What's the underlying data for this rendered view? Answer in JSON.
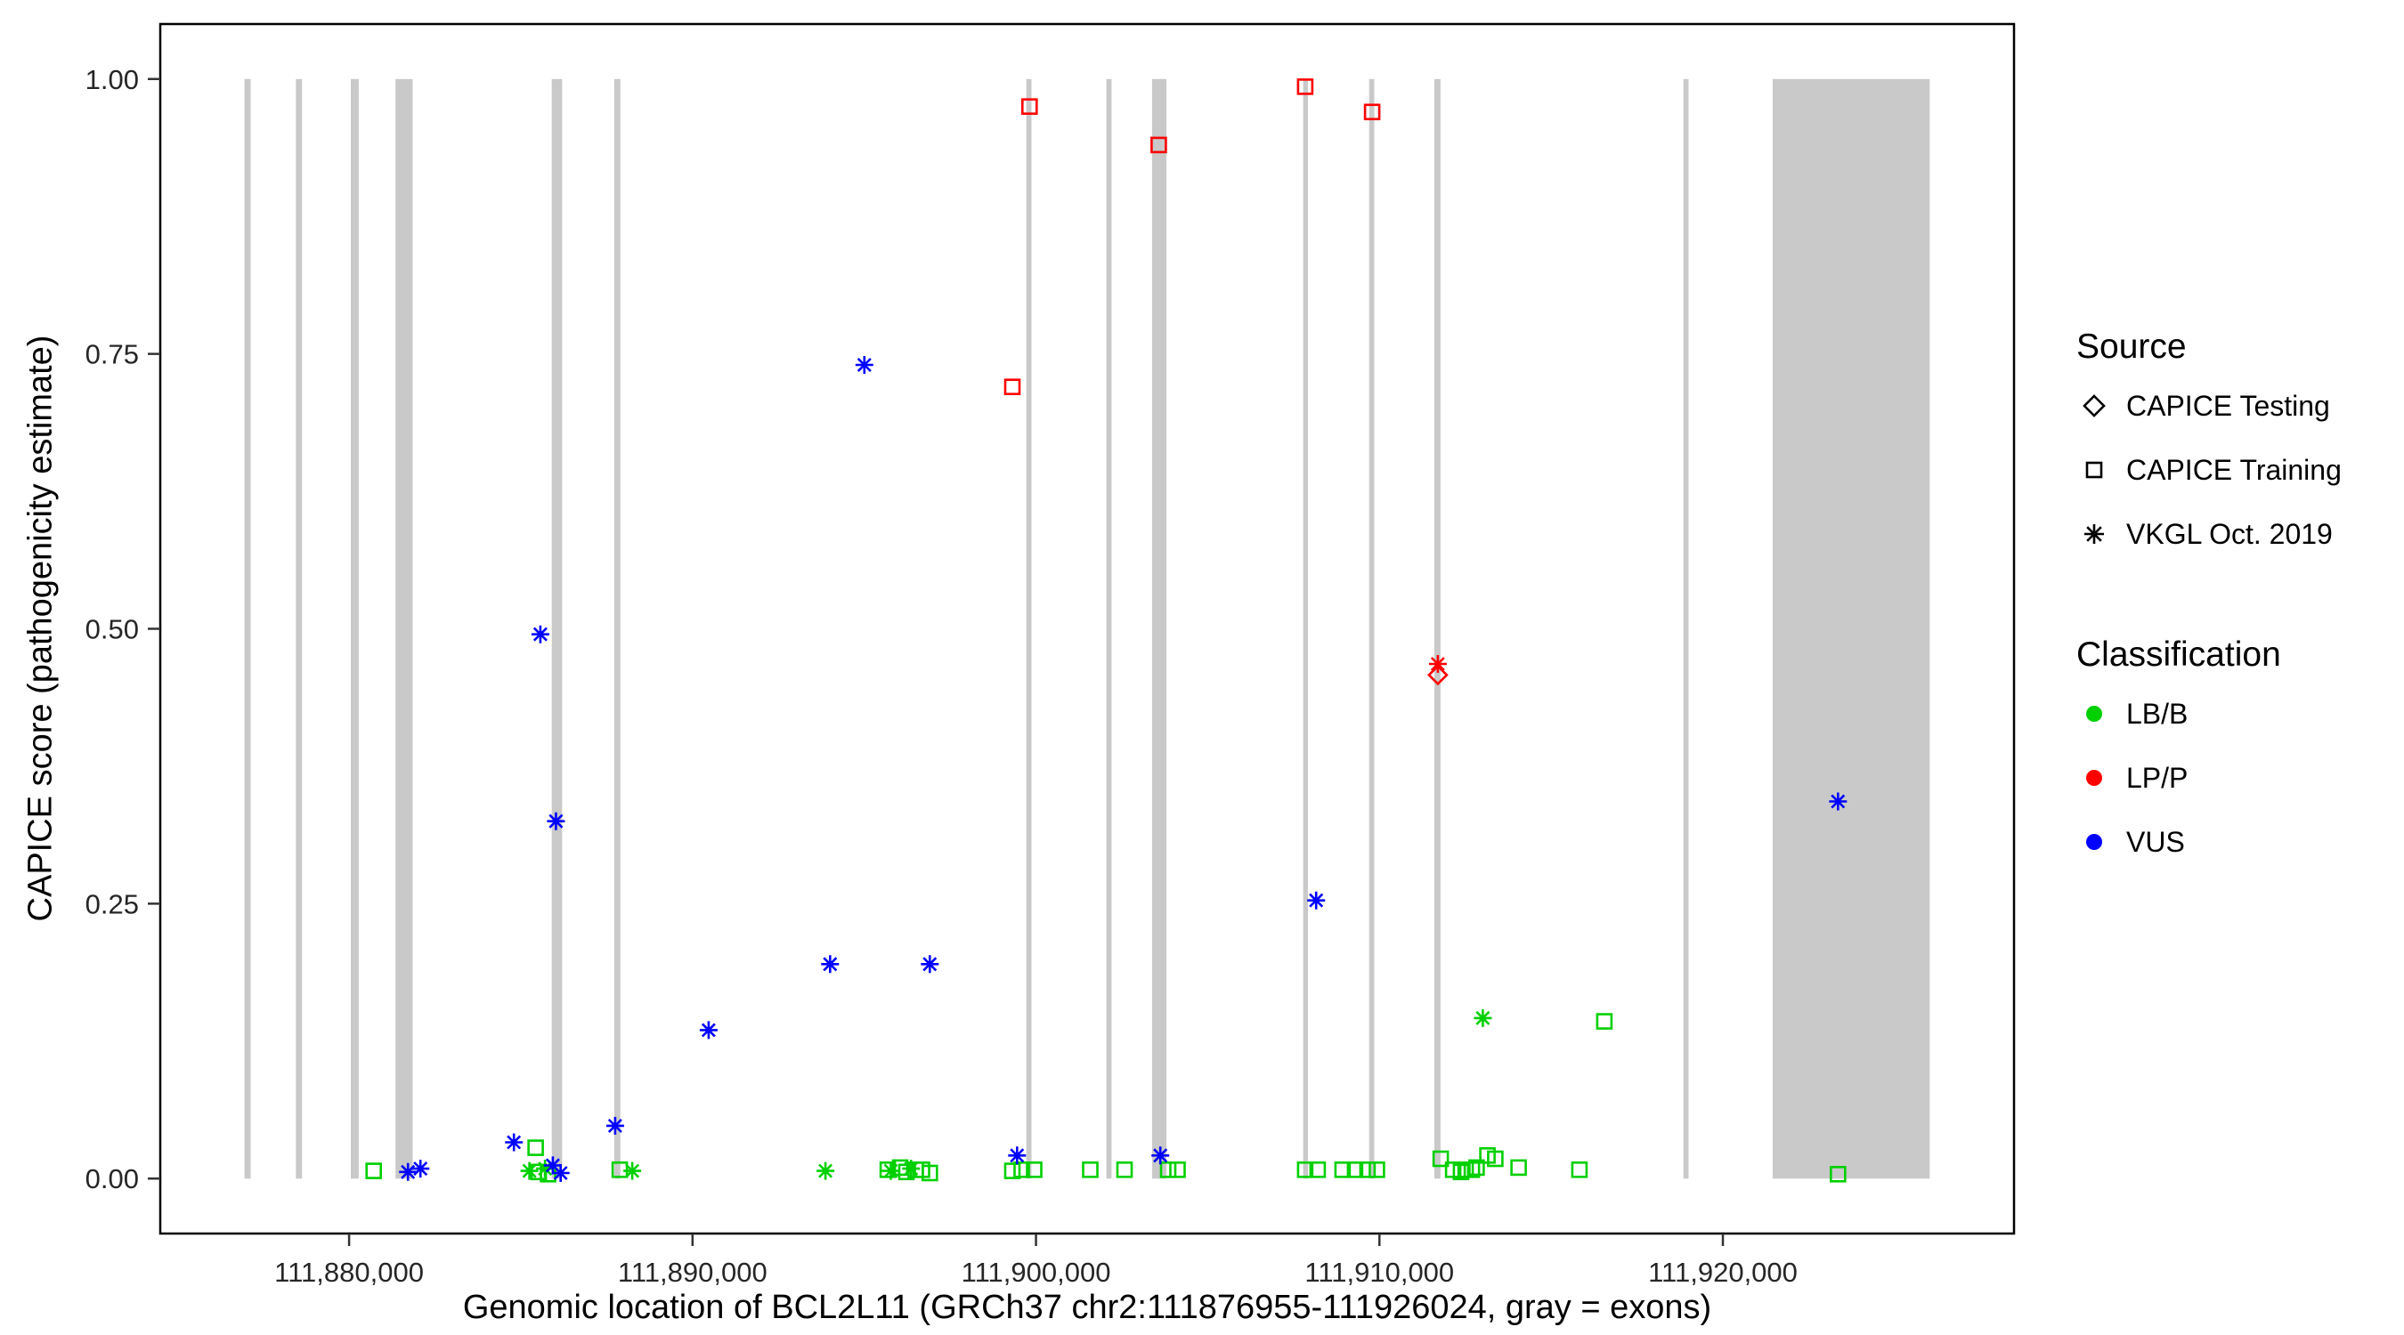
{
  "chart_data": {
    "type": "scatter",
    "title": "",
    "xlabel": "Genomic location of BCL2L11 (GRCh37 chr2:111876955-111926024, gray = exons)",
    "ylabel": "CAPICE score (pathogenicity estimate)",
    "xlim": [
      111874502,
      111928477
    ],
    "ylim": [
      -0.05,
      1.05
    ],
    "grid": false,
    "legend_position": "right",
    "panel_border_color": "#000000",
    "exon_color": "#c9c9c9",
    "x_ticks": [
      {
        "value": 111880000,
        "label": "111,880,000"
      },
      {
        "value": 111890000,
        "label": "111,890,000"
      },
      {
        "value": 111900000,
        "label": "111,900,000"
      },
      {
        "value": 111910000,
        "label": "111,910,000"
      },
      {
        "value": 111920000,
        "label": "111,920,000"
      }
    ],
    "y_ticks": [
      {
        "value": 0.0,
        "label": "0.00"
      },
      {
        "value": 0.25,
        "label": "0.25"
      },
      {
        "value": 0.5,
        "label": "0.50"
      },
      {
        "value": 0.75,
        "label": "0.75"
      },
      {
        "value": 1.0,
        "label": "1.00"
      }
    ],
    "exons": [
      [
        111876955,
        111877135
      ],
      [
        111878450,
        111878630
      ],
      [
        111880050,
        111880280
      ],
      [
        111881350,
        111881850
      ],
      [
        111885900,
        111886200
      ],
      [
        111887720,
        111887900
      ],
      [
        111899720,
        111899870
      ],
      [
        111902050,
        111902200
      ],
      [
        111903380,
        111903800
      ],
      [
        111907780,
        111907920
      ],
      [
        111909700,
        111909850
      ],
      [
        111911600,
        111911780
      ],
      [
        111918850,
        111919000
      ],
      [
        111921450,
        111926024
      ]
    ],
    "series": [
      {
        "name": "CAPICE Training / LB/B",
        "source": "CAPICE Training",
        "classification": "LB/B",
        "shape": "square",
        "color": "#00d000",
        "points": [
          [
            111880716,
            0.007
          ],
          [
            111885433,
            0.028
          ],
          [
            111885523,
            0.006
          ],
          [
            111885796,
            0.004
          ],
          [
            111887882,
            0.008
          ],
          [
            111895684,
            0.008
          ],
          [
            111896046,
            0.01
          ],
          [
            111896228,
            0.006
          ],
          [
            111896500,
            0.008
          ],
          [
            111896681,
            0.008
          ],
          [
            111896908,
            0.005
          ],
          [
            111899312,
            0.007
          ],
          [
            111899584,
            0.008
          ],
          [
            111899947,
            0.008
          ],
          [
            111901580,
            0.008
          ],
          [
            111902578,
            0.008
          ],
          [
            111903848,
            0.008
          ],
          [
            111904120,
            0.008
          ],
          [
            111907839,
            0.008
          ],
          [
            111908202,
            0.008
          ],
          [
            111908928,
            0.008
          ],
          [
            111909291,
            0.008
          ],
          [
            111909654,
            0.008
          ],
          [
            111909926,
            0.008
          ],
          [
            111911785,
            0.018
          ],
          [
            111912148,
            0.008
          ],
          [
            111912374,
            0.006
          ],
          [
            111912511,
            0.008
          ],
          [
            111912692,
            0.008
          ],
          [
            111912828,
            0.01
          ],
          [
            111913146,
            0.021
          ],
          [
            111913373,
            0.018
          ],
          [
            111914053,
            0.01
          ],
          [
            111915822,
            0.008
          ],
          [
            111916548,
            0.143
          ],
          [
            111923351,
            0.004
          ]
        ]
      },
      {
        "name": "CAPICE Training / LP/P",
        "source": "CAPICE Training",
        "classification": "LP/P",
        "shape": "square",
        "color": "#ff0000",
        "points": [
          [
            111899312,
            0.72
          ],
          [
            111899811,
            0.975
          ],
          [
            111903575,
            0.94
          ],
          [
            111907839,
            0.993
          ],
          [
            111909789,
            0.97
          ]
        ]
      },
      {
        "name": "CAPICE Testing / LP/P",
        "source": "CAPICE Testing",
        "classification": "LP/P",
        "shape": "diamond",
        "color": "#ff0000",
        "points": [
          [
            111911700,
            0.458
          ]
        ]
      },
      {
        "name": "VKGL Oct. 2019 / LB/B",
        "source": "VKGL Oct. 2019",
        "classification": "LB/B",
        "shape": "asterisk",
        "color": "#00d000",
        "points": [
          [
            111885251,
            0.007
          ],
          [
            111885705,
            0.009
          ],
          [
            111888245,
            0.007
          ],
          [
            111893869,
            0.007
          ],
          [
            111895774,
            0.007
          ],
          [
            111896364,
            0.009
          ],
          [
            111913010,
            0.146
          ]
        ]
      },
      {
        "name": "VKGL Oct. 2019 / VUS",
        "source": "VKGL Oct. 2019",
        "classification": "VUS",
        "shape": "asterisk",
        "color": "#0000ff",
        "points": [
          [
            111881714,
            0.006
          ],
          [
            111882077,
            0.009
          ],
          [
            111884798,
            0.033
          ],
          [
            111885569,
            0.495
          ],
          [
            111885932,
            0.012
          ],
          [
            111886023,
            0.325
          ],
          [
            111886159,
            0.005
          ],
          [
            111887746,
            0.048
          ],
          [
            111890468,
            0.135
          ],
          [
            111894005,
            0.195
          ],
          [
            111895003,
            0.74
          ],
          [
            111896908,
            0.195
          ],
          [
            111899448,
            0.021
          ],
          [
            111903621,
            0.021
          ],
          [
            111908157,
            0.253
          ],
          [
            111923351,
            0.343
          ]
        ]
      },
      {
        "name": "VKGL Oct. 2019 / LP/P",
        "source": "VKGL Oct. 2019",
        "classification": "LP/P",
        "shape": "asterisk",
        "color": "#ff0000",
        "points": [
          [
            111911700,
            0.468
          ]
        ]
      }
    ],
    "legend": {
      "source_title": "Source",
      "source_items": [
        {
          "label": "CAPICE Testing",
          "shape": "diamond"
        },
        {
          "label": "CAPICE Training",
          "shape": "square"
        },
        {
          "label": "VKGL Oct. 2019",
          "shape": "asterisk"
        }
      ],
      "classification_title": "Classification",
      "classification_items": [
        {
          "label": "LB/B",
          "color": "#00d000"
        },
        {
          "label": "LP/P",
          "color": "#ff0000"
        },
        {
          "label": "VUS",
          "color": "#0000ff"
        }
      ]
    }
  }
}
